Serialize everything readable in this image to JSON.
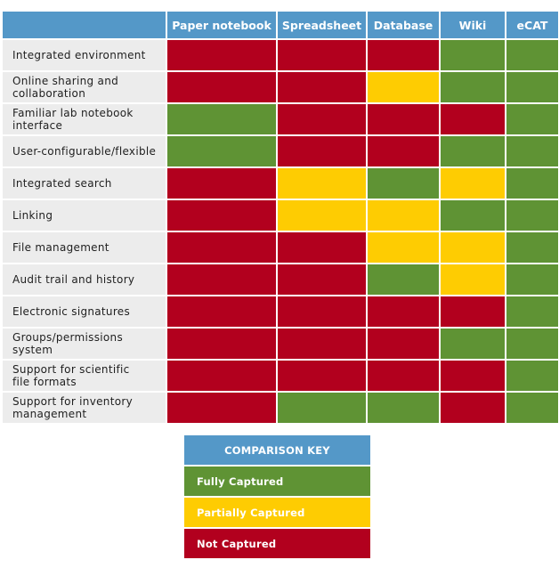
{
  "columns": [
    "Paper notebook",
    "Spreadsheet",
    "Database",
    "Wiki",
    "eCAT"
  ],
  "rows": [
    {
      "label": "Integrated environment",
      "ratings": [
        "none",
        "none",
        "none",
        "full",
        "full"
      ]
    },
    {
      "label": "Online sharing and\ncollaboration",
      "ratings": [
        "none",
        "none",
        "partial",
        "full",
        "full"
      ]
    },
    {
      "label": "Familiar lab notebook\ninterface",
      "ratings": [
        "full",
        "none",
        "none",
        "none",
        "full"
      ]
    },
    {
      "label": "User-configurable/flexible",
      "ratings": [
        "full",
        "none",
        "none",
        "full",
        "full"
      ]
    },
    {
      "label": "Integrated search",
      "ratings": [
        "none",
        "partial",
        "full",
        "partial",
        "full"
      ]
    },
    {
      "label": "Linking",
      "ratings": [
        "none",
        "partial",
        "partial",
        "full",
        "full"
      ]
    },
    {
      "label": "File management",
      "ratings": [
        "none",
        "none",
        "partial",
        "partial",
        "full"
      ]
    },
    {
      "label": "Audit trail and history",
      "ratings": [
        "none",
        "none",
        "full",
        "partial",
        "full"
      ]
    },
    {
      "label": "Electronic signatures",
      "ratings": [
        "none",
        "none",
        "none",
        "none",
        "full"
      ]
    },
    {
      "label": "Groups/permissions system",
      "ratings": [
        "none",
        "none",
        "none",
        "full",
        "full"
      ]
    },
    {
      "label": "Support for scientific\nfile formats",
      "ratings": [
        "none",
        "none",
        "none",
        "none",
        "full"
      ]
    },
    {
      "label": "Support for inventory\nmanagement",
      "ratings": [
        "none",
        "full",
        "full",
        "none",
        "full"
      ]
    }
  ],
  "key": {
    "title": "COMPARISON KEY",
    "entries": [
      {
        "id": "full",
        "label": "Fully Captured"
      },
      {
        "id": "partial",
        "label": "Partially Captured"
      },
      {
        "id": "none",
        "label": "Not Captured"
      }
    ]
  },
  "colors": {
    "header": "#5498c8",
    "full": "#5f9334",
    "partial": "#fecc02",
    "none": "#b2001e",
    "row_label_bg": "#ececec"
  }
}
